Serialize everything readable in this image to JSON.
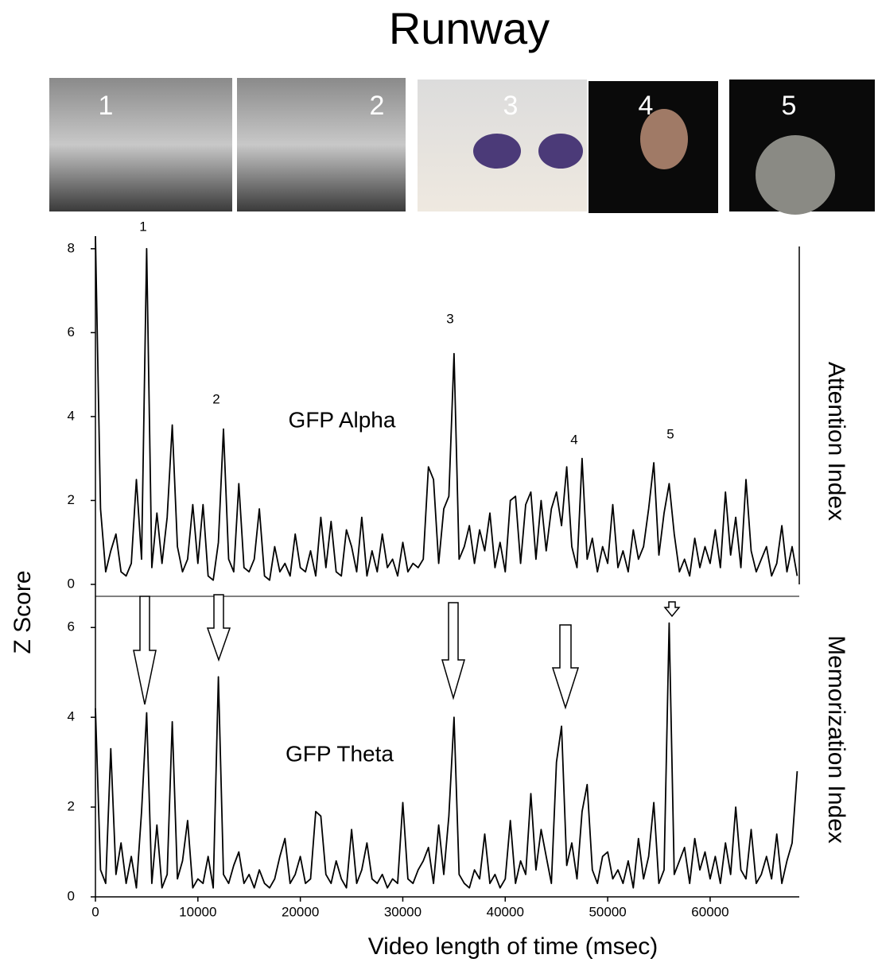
{
  "title": "Runway",
  "thumbnails": [
    "1",
    "2",
    "3",
    "4",
    "5"
  ],
  "y_label": "Z Score",
  "chart_data": [
    {
      "type": "line",
      "panel_label": "GFP Alpha",
      "side_label": "Attention Index",
      "annotations": [
        "1",
        "2",
        "3",
        "4",
        "5"
      ],
      "xlim": [
        0,
        68700
      ],
      "ylim": [
        0,
        8.3
      ],
      "yticks": [
        0,
        2,
        4,
        6,
        8
      ],
      "x": [
        0,
        500,
        1000,
        1500,
        2000,
        2500,
        3000,
        3500,
        4000,
        4500,
        5000,
        5500,
        6000,
        6500,
        7000,
        7500,
        8000,
        8500,
        9000,
        9500,
        10000,
        10500,
        11000,
        11500,
        12000,
        12500,
        13000,
        13500,
        14000,
        14500,
        15000,
        15500,
        16000,
        16500,
        17000,
        17500,
        18000,
        18500,
        19000,
        19500,
        20000,
        20500,
        21000,
        21500,
        22000,
        22500,
        23000,
        23500,
        24000,
        24500,
        25000,
        25500,
        26000,
        26500,
        27000,
        27500,
        28000,
        28500,
        29000,
        29500,
        30000,
        30500,
        31000,
        31500,
        32000,
        32500,
        33000,
        33500,
        34000,
        34500,
        35000,
        35500,
        36000,
        36500,
        37000,
        37500,
        38000,
        38500,
        39000,
        39500,
        40000,
        40500,
        41000,
        41500,
        42000,
        42500,
        43000,
        43500,
        44000,
        44500,
        45000,
        45500,
        46000,
        46500,
        47000,
        47500,
        48000,
        48500,
        49000,
        49500,
        50000,
        50500,
        51000,
        51500,
        52000,
        52500,
        53000,
        53500,
        54000,
        54500,
        55000,
        55500,
        56000,
        56500,
        57000,
        57500,
        58000,
        58500,
        59000,
        59500,
        60000,
        60500,
        61000,
        61500,
        62000,
        62500,
        63000,
        63500,
        64000,
        64500,
        65000,
        65500,
        66000,
        66500,
        67000,
        67500,
        68000,
        68500
      ],
      "series": [
        {
          "name": "GFP Alpha",
          "color": "#000000",
          "values": [
            8.3,
            1.8,
            0.3,
            0.8,
            1.2,
            0.3,
            0.2,
            0.5,
            2.5,
            0.6,
            8.0,
            0.4,
            1.7,
            0.5,
            1.6,
            3.8,
            0.9,
            0.3,
            0.6,
            1.9,
            0.5,
            1.9,
            0.2,
            0.1,
            1.0,
            3.7,
            0.6,
            0.3,
            2.4,
            0.4,
            0.3,
            0.6,
            1.8,
            0.2,
            0.1,
            0.9,
            0.3,
            0.5,
            0.2,
            1.2,
            0.4,
            0.3,
            0.8,
            0.2,
            1.6,
            0.4,
            1.5,
            0.3,
            0.2,
            1.3,
            0.9,
            0.3,
            1.6,
            0.2,
            0.8,
            0.3,
            1.2,
            0.4,
            0.6,
            0.2,
            1.0,
            0.3,
            0.5,
            0.4,
            0.6,
            2.8,
            2.5,
            0.5,
            1.8,
            2.1,
            5.5,
            0.6,
            0.9,
            1.4,
            0.5,
            1.3,
            0.8,
            1.7,
            0.4,
            1.0,
            0.3,
            2.0,
            2.1,
            0.5,
            1.9,
            2.2,
            0.6,
            2.0,
            0.8,
            1.8,
            2.2,
            1.4,
            2.8,
            0.9,
            0.4,
            3.0,
            0.6,
            1.1,
            0.3,
            0.9,
            0.5,
            1.9,
            0.4,
            0.8,
            0.3,
            1.3,
            0.6,
            0.9,
            1.8,
            2.9,
            0.7,
            1.7,
            2.4,
            1.2,
            0.3,
            0.6,
            0.2,
            1.1,
            0.4,
            0.9,
            0.5,
            1.3,
            0.4,
            2.2,
            0.7,
            1.6,
            0.4,
            2.5,
            0.8,
            0.3,
            0.6,
            0.9,
            0.2,
            0.5,
            1.4,
            0.3,
            0.9,
            0.2
          ]
        }
      ]
    },
    {
      "type": "line",
      "panel_label": "GFP Theta",
      "side_label": "Memorization Index",
      "xlabel": "Video length of time (msec)",
      "xlim": [
        0,
        68700
      ],
      "ylim": [
        0,
        6.5
      ],
      "yticks": [
        0,
        2,
        4,
        6
      ],
      "xticks": [
        0,
        10000,
        20000,
        30000,
        40000,
        50000,
        60000
      ],
      "x": [
        0,
        500,
        1000,
        1500,
        2000,
        2500,
        3000,
        3500,
        4000,
        4500,
        5000,
        5500,
        6000,
        6500,
        7000,
        7500,
        8000,
        8500,
        9000,
        9500,
        10000,
        10500,
        11000,
        11500,
        12000,
        12500,
        13000,
        13500,
        14000,
        14500,
        15000,
        15500,
        16000,
        16500,
        17000,
        17500,
        18000,
        18500,
        19000,
        19500,
        20000,
        20500,
        21000,
        21500,
        22000,
        22500,
        23000,
        23500,
        24000,
        24500,
        25000,
        25500,
        26000,
        26500,
        27000,
        27500,
        28000,
        28500,
        29000,
        29500,
        30000,
        30500,
        31000,
        31500,
        32000,
        32500,
        33000,
        33500,
        34000,
        34500,
        35000,
        35500,
        36000,
        36500,
        37000,
        37500,
        38000,
        38500,
        39000,
        39500,
        40000,
        40500,
        41000,
        41500,
        42000,
        42500,
        43000,
        43500,
        44000,
        44500,
        45000,
        45500,
        46000,
        46500,
        47000,
        47500,
        48000,
        48500,
        49000,
        49500,
        50000,
        50500,
        51000,
        51500,
        52000,
        52500,
        53000,
        53500,
        54000,
        54500,
        55000,
        55500,
        56000,
        56500,
        57000,
        57500,
        58000,
        58500,
        59000,
        59500,
        60000,
        60500,
        61000,
        61500,
        62000,
        62500,
        63000,
        63500,
        64000,
        64500,
        65000,
        65500,
        66000,
        66500,
        67000,
        67500,
        68000,
        68500
      ],
      "series": [
        {
          "name": "GFP Theta",
          "color": "#000000",
          "values": [
            4.2,
            0.6,
            0.3,
            3.3,
            0.5,
            1.2,
            0.3,
            0.9,
            0.2,
            1.9,
            4.1,
            0.3,
            1.6,
            0.2,
            0.5,
            3.9,
            0.4,
            0.8,
            1.7,
            0.2,
            0.4,
            0.3,
            0.9,
            0.2,
            4.9,
            0.5,
            0.3,
            0.7,
            1.0,
            0.3,
            0.5,
            0.2,
            0.6,
            0.3,
            0.2,
            0.4,
            0.9,
            1.3,
            0.3,
            0.5,
            0.9,
            0.3,
            0.4,
            1.9,
            1.8,
            0.5,
            0.3,
            0.8,
            0.4,
            0.2,
            1.5,
            0.3,
            0.6,
            1.2,
            0.4,
            0.3,
            0.5,
            0.2,
            0.4,
            0.3,
            2.1,
            0.4,
            0.3,
            0.6,
            0.8,
            1.1,
            0.3,
            1.6,
            0.5,
            1.8,
            4.0,
            0.5,
            0.3,
            0.2,
            0.6,
            0.4,
            1.4,
            0.3,
            0.5,
            0.2,
            0.4,
            1.7,
            0.3,
            0.8,
            0.5,
            2.3,
            0.6,
            1.5,
            0.9,
            0.3,
            3.0,
            3.8,
            0.7,
            1.2,
            0.4,
            1.9,
            2.5,
            0.6,
            0.3,
            0.9,
            1.0,
            0.4,
            0.6,
            0.3,
            0.8,
            0.2,
            1.3,
            0.4,
            0.9,
            2.1,
            0.3,
            0.6,
            6.1,
            0.5,
            0.8,
            1.1,
            0.3,
            1.3,
            0.6,
            1.0,
            0.4,
            0.9,
            0.3,
            1.2,
            0.5,
            2.0,
            0.6,
            0.4,
            1.5,
            0.3,
            0.5,
            0.9,
            0.4,
            1.4,
            0.3,
            0.8,
            1.2,
            2.8
          ]
        }
      ]
    }
  ]
}
